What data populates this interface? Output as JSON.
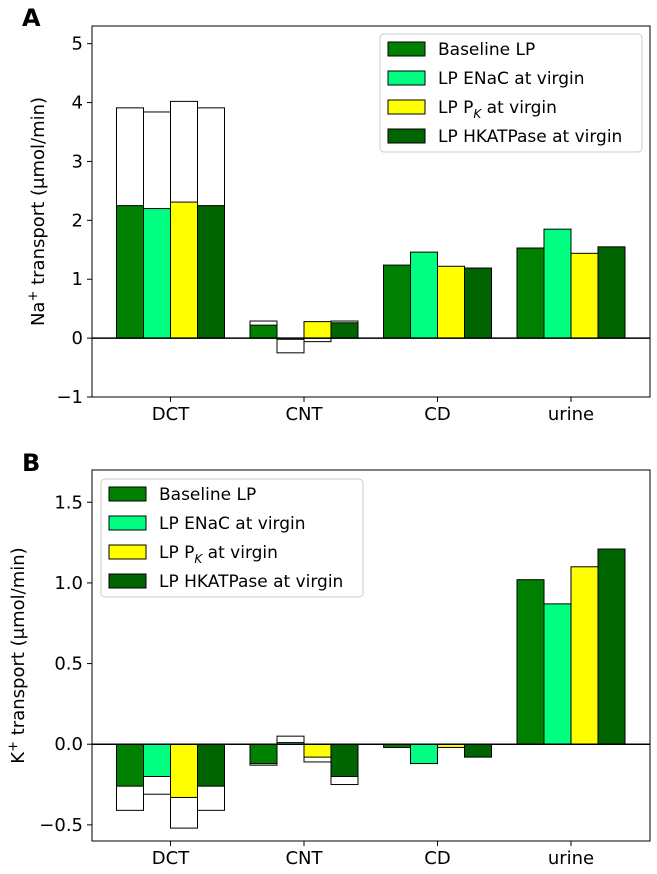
{
  "chart_data": [
    {
      "panel": "A",
      "type": "bar",
      "categories": [
        "DCT",
        "CNT",
        "CD",
        "urine"
      ],
      "ylabel_main": "Na",
      "ylabel_sup": "+",
      "ylabel_rest": " transport (μmol/min)",
      "ylim": [
        -1,
        5.3
      ],
      "yticks": [
        -1,
        0,
        1,
        2,
        3,
        4,
        5
      ],
      "legend_position": "top-right",
      "series": [
        {
          "name": "Baseline LP",
          "color": "#008000",
          "values": [
            2.25,
            0.22,
            1.24,
            1.53
          ],
          "totals": [
            3.91,
            0.29,
            null,
            null
          ]
        },
        {
          "name": "LP ENaC at virgin",
          "color": "#00ff80",
          "values": [
            2.2,
            -0.02,
            1.46,
            1.85
          ],
          "totals": [
            3.84,
            -0.25,
            null,
            null
          ]
        },
        {
          "name": "LP P_K at virgin",
          "color": "#ffff00",
          "values": [
            2.31,
            0.28,
            1.22,
            1.44
          ],
          "totals": [
            4.02,
            -0.06,
            null,
            null
          ]
        },
        {
          "name": "LP HKATPase at virgin",
          "color": "#006400",
          "values": [
            2.25,
            0.26,
            1.19,
            1.55
          ],
          "totals": [
            3.91,
            0.29,
            null,
            null
          ]
        }
      ]
    },
    {
      "panel": "B",
      "type": "bar",
      "categories": [
        "DCT",
        "CNT",
        "CD",
        "urine"
      ],
      "ylabel_main": "K",
      "ylabel_sup": "+",
      "ylabel_rest": " transport (μmol/min)",
      "ylim": [
        -0.6,
        1.7
      ],
      "yticks": [
        -0.5,
        0.0,
        0.5,
        1.0,
        1.5
      ],
      "legend_position": "top-left",
      "series": [
        {
          "name": "Baseline LP",
          "color": "#008000",
          "values": [
            -0.26,
            -0.12,
            -0.02,
            1.02
          ],
          "totals": [
            -0.41,
            -0.13,
            null,
            null
          ]
        },
        {
          "name": "LP ENaC at virgin",
          "color": "#00ff80",
          "values": [
            -0.2,
            0.01,
            -0.12,
            0.87
          ],
          "totals": [
            -0.31,
            0.05,
            null,
            null
          ]
        },
        {
          "name": "LP P_K at virgin",
          "color": "#ffff00",
          "values": [
            -0.33,
            -0.08,
            -0.02,
            1.1
          ],
          "totals": [
            -0.52,
            -0.11,
            null,
            null
          ]
        },
        {
          "name": "LP HKATPase at virgin",
          "color": "#006400",
          "values": [
            -0.26,
            -0.2,
            -0.08,
            1.21
          ],
          "totals": [
            -0.41,
            -0.25,
            null,
            null
          ]
        }
      ]
    }
  ],
  "legend_labels": {
    "s0": "Baseline LP",
    "s1": "LP ENaC at virgin",
    "s2_main": "LP P",
    "s2_sub": "K",
    "s2_rest": " at virgin",
    "s3": "LP HKATPase at virgin"
  }
}
